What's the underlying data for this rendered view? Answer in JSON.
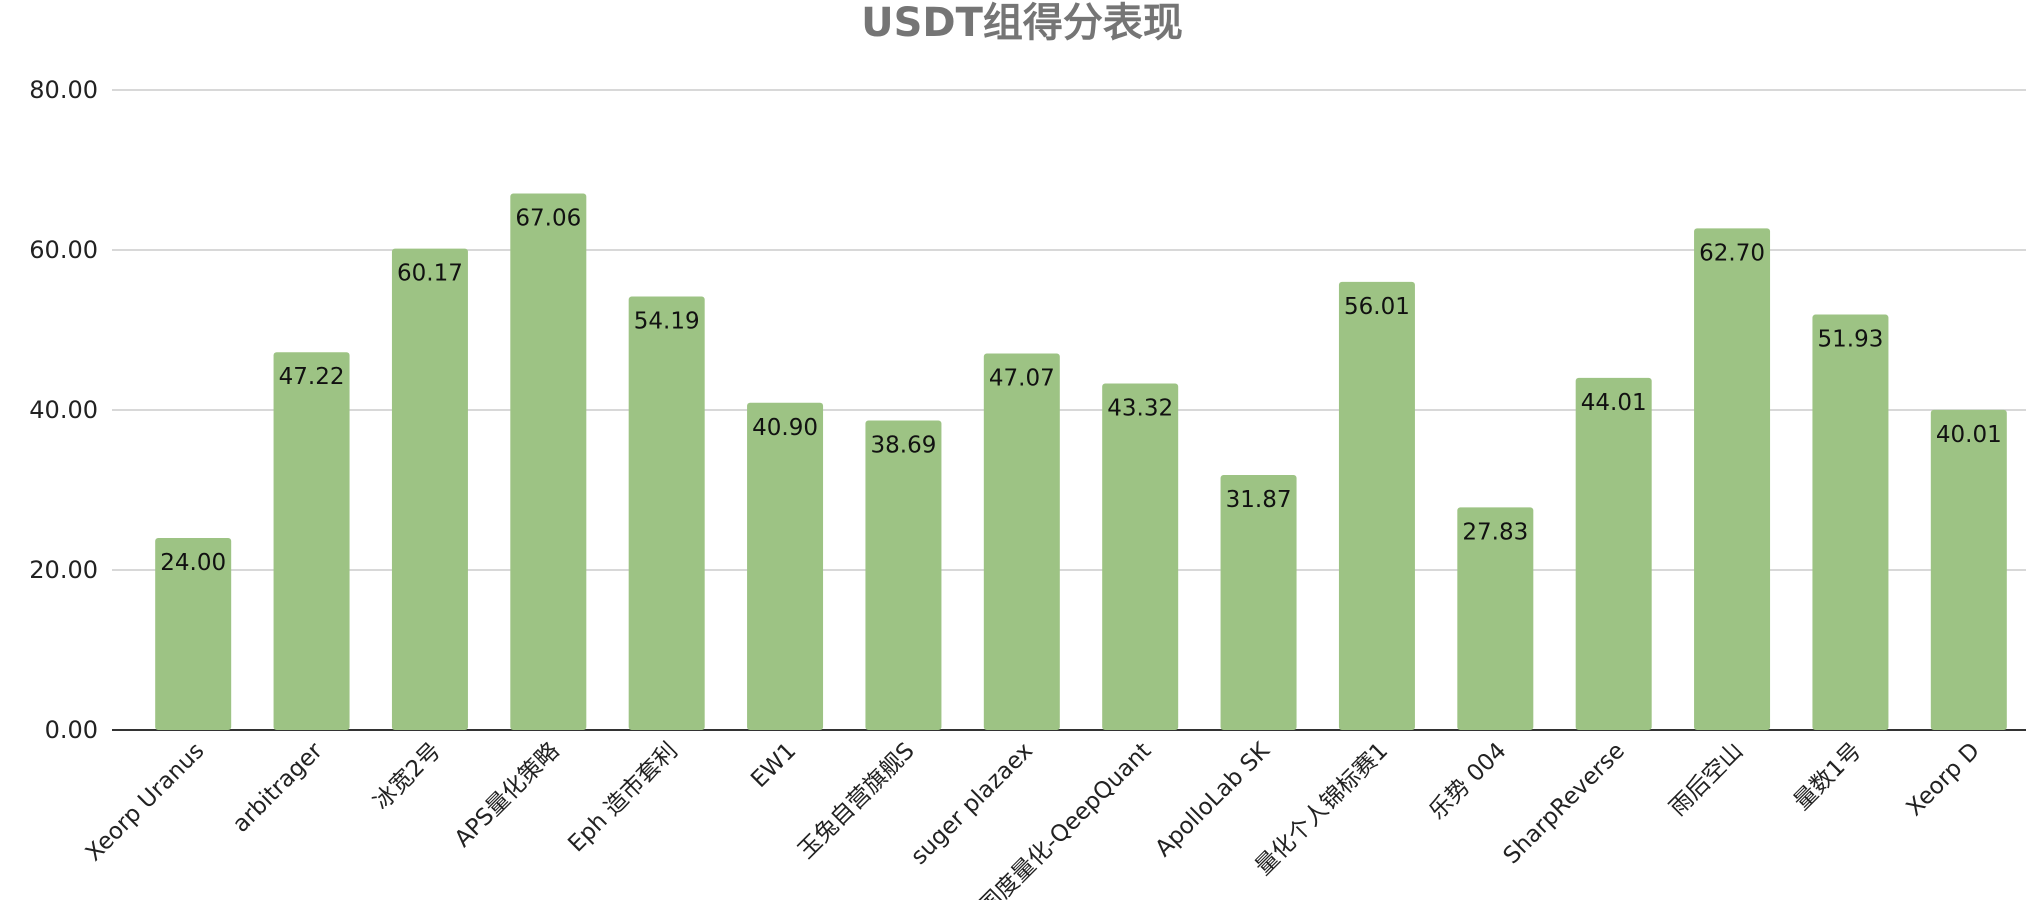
{
  "chart_data": {
    "type": "bar",
    "title": "USDT组得分表现",
    "xlabel": "",
    "ylabel": "",
    "ylim": [
      0,
      80
    ],
    "yticks": [
      "0.00",
      "20.00",
      "40.00",
      "60.00",
      "80.00"
    ],
    "ytick_values": [
      0,
      20,
      40,
      60,
      80
    ],
    "grid": true,
    "legend": "none",
    "bar_color": "#9dc384",
    "categories": [
      "Xeorp Uranus",
      "arbitrager",
      "冰宽2号",
      "APS量化策略",
      "Eph 造市套利",
      "EW1",
      "玉兔自营旗舰S",
      "suger plazaex",
      "国度量化-QeepQuant",
      "ApolloLab SK",
      "量化个人锦标赛1",
      "乐势 004",
      "SharpReverse",
      "雨后空山",
      "量数1号",
      "Xeorp D"
    ],
    "values": [
      24.0,
      47.22,
      60.17,
      67.06,
      54.19,
      40.9,
      38.69,
      47.07,
      43.32,
      31.87,
      56.01,
      27.83,
      44.01,
      62.7,
      51.93,
      40.01
    ],
    "value_labels": [
      "24.00",
      "47.22",
      "60.17",
      "67.06",
      "54.19",
      "40.90",
      "38.69",
      "47.07",
      "43.32",
      "31.87",
      "56.01",
      "27.83",
      "44.01",
      "62.70",
      "51.93",
      "40.01"
    ]
  }
}
